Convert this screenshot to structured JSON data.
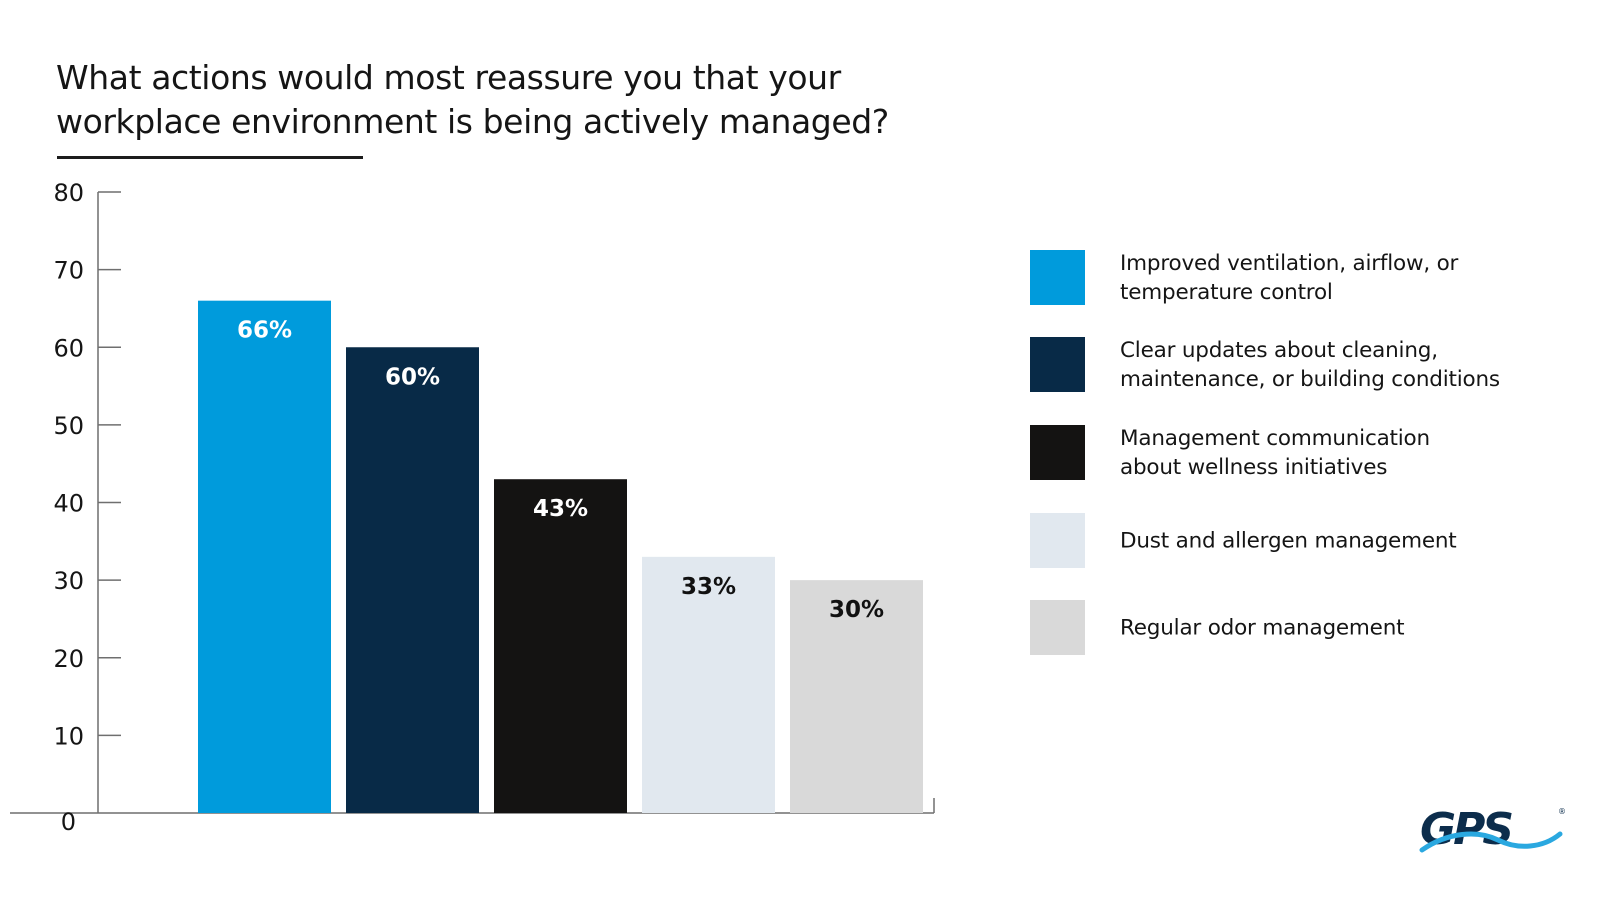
{
  "title": {
    "line1": "What actions would most reassure you that your",
    "line2": "workplace environment is being actively managed?"
  },
  "chart_data": {
    "type": "bar",
    "title": "What actions would most reassure you that your workplace environment is being actively managed?",
    "xlabel": "",
    "ylabel": "",
    "ylim": [
      0,
      80
    ],
    "yticks": [
      "0",
      "10",
      "20",
      "30",
      "40",
      "50",
      "60",
      "70",
      "80"
    ],
    "grid": false,
    "legend_position": "right",
    "categories": [
      "Improved ventilation, airflow, or temperature control",
      "Clear updates about cleaning, maintenance, or building conditions",
      "Management communication about wellness initiatives",
      "Dust and allergen management",
      "Regular odor management"
    ],
    "values": [
      66,
      60,
      43,
      33,
      30
    ],
    "data_labels": [
      "66%",
      "60%",
      "43%",
      "33%",
      "30%"
    ],
    "colors": [
      "#009bdc",
      "#082a47",
      "#141312",
      "#e1e8ef",
      "#d9d9d9"
    ],
    "label_colors": [
      "#ffffff",
      "#ffffff",
      "#ffffff",
      "#111111",
      "#111111"
    ]
  },
  "legend": [
    {
      "line1": "Improved ventilation, airflow, or",
      "line2": "temperature control"
    },
    {
      "line1": "Clear updates about cleaning,",
      "line2": "maintenance, or building conditions"
    },
    {
      "line1": "Management communication",
      "line2": "about wellness initiatives"
    },
    {
      "line1": "Dust and allergen management",
      "line2": ""
    },
    {
      "line1": "Regular odor management",
      "line2": ""
    }
  ],
  "logo": {
    "text": "GPS",
    "brand_color": "#0c2d4c",
    "wave_color": "#2aa8e0"
  }
}
